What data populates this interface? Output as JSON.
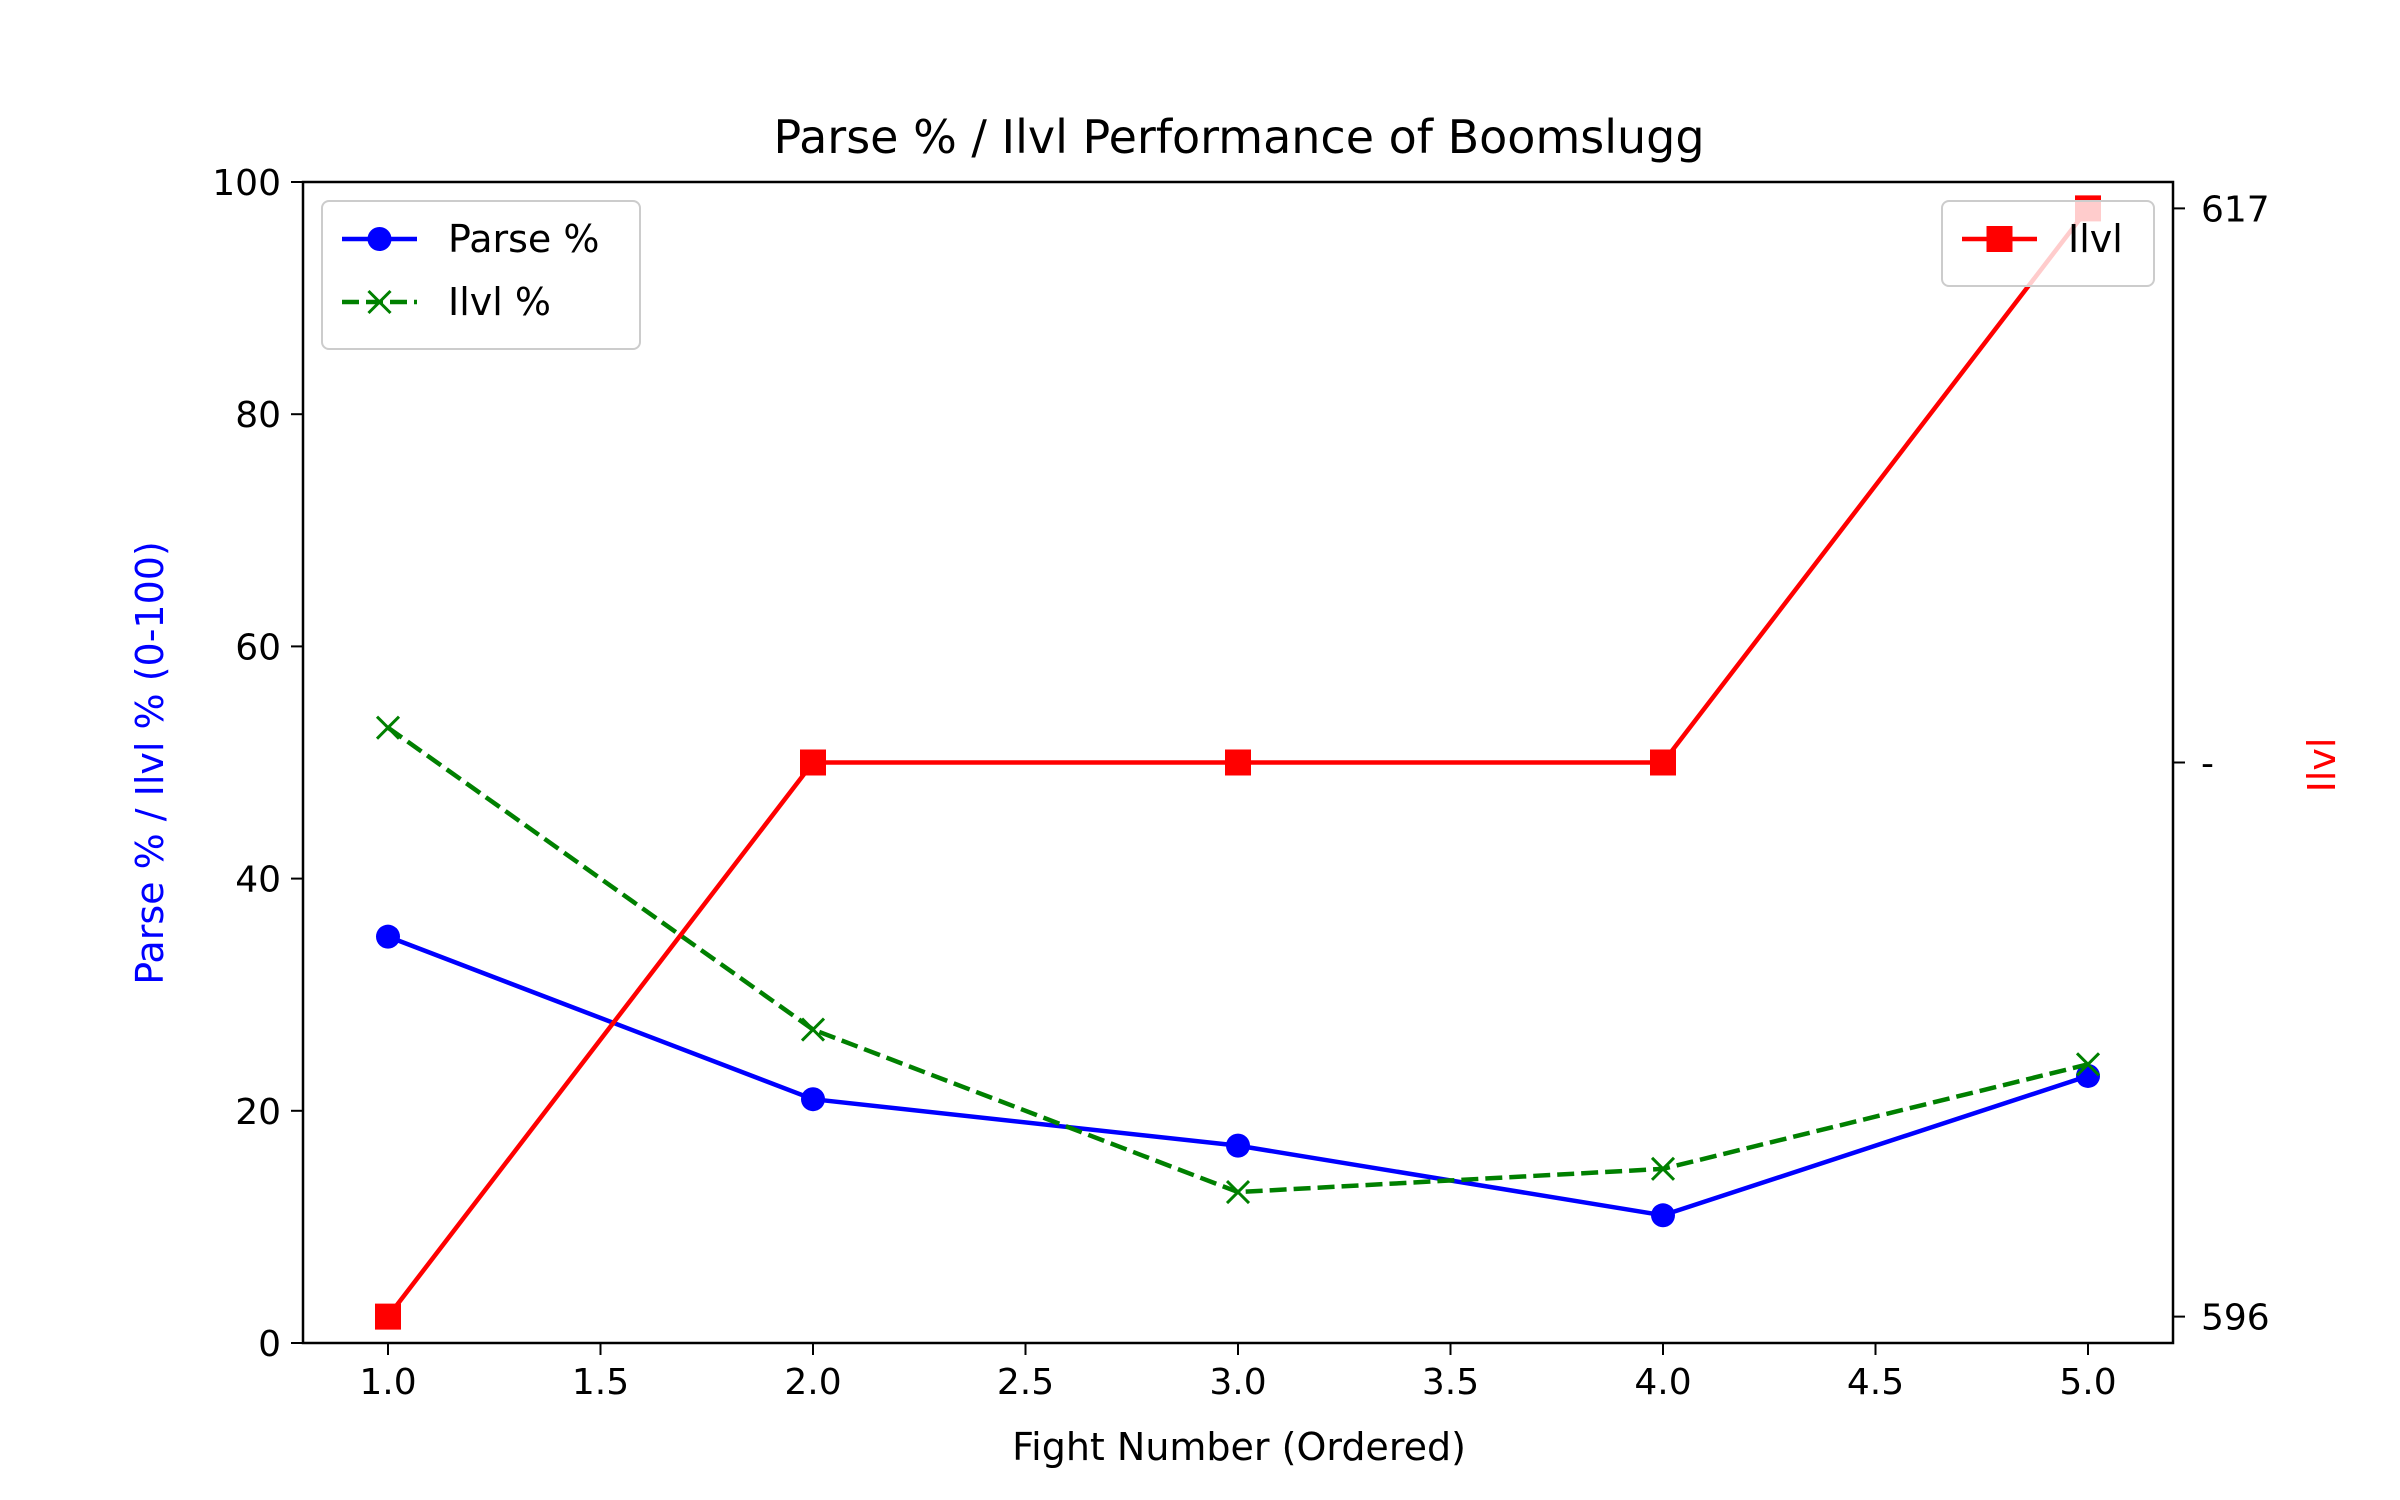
{
  "chart_data": {
    "type": "line",
    "title": "Parse % / Ilvl Performance of Boomslugg",
    "xlabel": "Fight Number (Ordered)",
    "ylabel_left": "Parse % / Ilvl % (0-100)",
    "ylabel_right": "Ilvl",
    "xlim": [
      0.8,
      5.2
    ],
    "ylim_left": [
      0,
      100
    ],
    "ylim_right": [
      595.5,
      617.5
    ],
    "x_ticks": [
      1.0,
      1.5,
      2.0,
      2.5,
      3.0,
      3.5,
      4.0,
      4.5,
      5.0
    ],
    "x_tick_labels": [
      "1.0",
      "1.5",
      "2.0",
      "2.5",
      "3.0",
      "3.5",
      "4.0",
      "4.5",
      "5.0"
    ],
    "left_ticks": [
      0,
      20,
      40,
      60,
      80,
      100
    ],
    "left_tick_labels": [
      "0",
      "20",
      "40",
      "60",
      "80",
      "100"
    ],
    "right_ticks": [
      596,
      606.5,
      617
    ],
    "right_tick_labels": [
      "596",
      "-",
      "617"
    ],
    "grid": false,
    "series": [
      {
        "name": "Parse %",
        "axis": "left",
        "x": [
          1,
          2,
          3,
          4,
          5
        ],
        "values": [
          35,
          21,
          17,
          11,
          23
        ],
        "color": "#0000ff",
        "marker": "circle",
        "line_style": "solid"
      },
      {
        "name": "Ilvl %",
        "axis": "left",
        "x": [
          1,
          2,
          3,
          4,
          5
        ],
        "values": [
          53,
          27,
          13,
          15,
          24
        ],
        "color": "#008000",
        "marker": "x",
        "line_style": "dashed"
      },
      {
        "name": "Ilvl",
        "axis": "right",
        "x": [
          1,
          2,
          3,
          4,
          5
        ],
        "values": [
          596,
          606.5,
          606.5,
          606.5,
          617
        ],
        "color": "#ff0000",
        "marker": "square",
        "line_style": "solid"
      }
    ],
    "legends": [
      {
        "placement": "upper-left",
        "entries": [
          "Parse %",
          "Ilvl %"
        ]
      },
      {
        "placement": "upper-right",
        "entries": [
          "Ilvl"
        ]
      }
    ]
  }
}
